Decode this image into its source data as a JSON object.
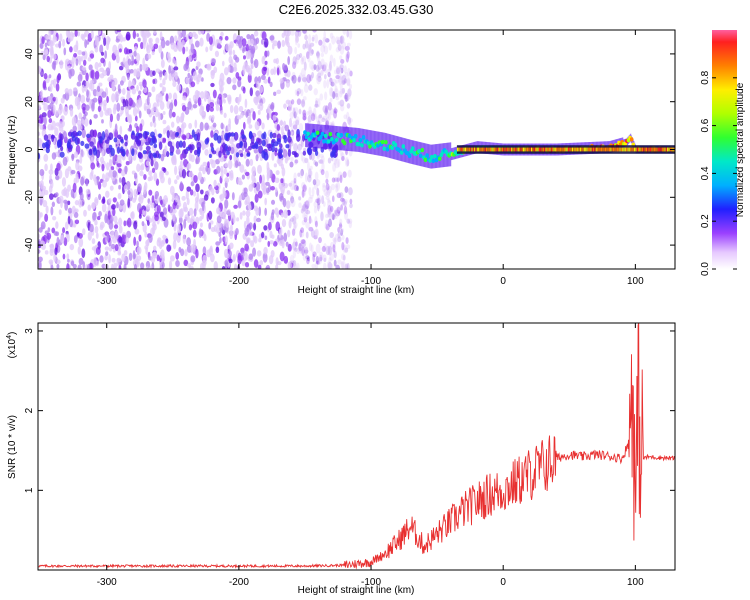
{
  "title": "C2E6.2025.332.03.45.G30",
  "chart_data": [
    {
      "type": "heatmap",
      "xlabel": "Height of straight line (km)",
      "ylabel": "Frequency (Hz)",
      "xlim": [
        -352,
        130
      ],
      "ylim": [
        -50,
        50
      ],
      "xticks": [
        -300,
        -200,
        -100,
        0,
        100
      ],
      "yticks": [
        -40,
        -20,
        0,
        20,
        40
      ],
      "xtick_labels": [
        "-300",
        "-200",
        "-100",
        "0",
        "100"
      ],
      "ytick_labels": [
        "-40",
        "-20",
        "0",
        "20",
        "40"
      ],
      "colorbar": {
        "label": "Normalized spectral amplitude",
        "range": [
          0,
          1
        ],
        "ticks": [
          0,
          0.2,
          0.4,
          0.6,
          0.8
        ],
        "tick_labels": [
          "0.0",
          "0.2",
          "0.4",
          "0.6",
          "0.8"
        ]
      },
      "ridge": {
        "x": [
          -150,
          -130,
          -110,
          -90,
          -70,
          -55,
          -40,
          -20,
          0,
          40,
          80,
          93,
          96,
          100,
          130
        ],
        "frequency": [
          6,
          5,
          4,
          2,
          -1,
          -3,
          -2,
          1,
          0,
          0,
          1,
          3,
          5,
          0,
          0
        ]
      },
      "noise_region_x": [
        -352,
        -125
      ]
    },
    {
      "type": "line",
      "xlabel": "Height of straight line (km)",
      "ylabel": "SNR (10 * v/v)",
      "y_multiplier_label": "(x10",
      "y_multiplier_exp": "4",
      "xlim": [
        -352,
        130
      ],
      "ylim": [
        0,
        3.1
      ],
      "xticks": [
        -300,
        -200,
        -100,
        0,
        100
      ],
      "yticks": [
        1,
        2,
        3
      ],
      "xtick_labels": [
        "-300",
        "-200",
        "-100",
        "0",
        "100"
      ],
      "ytick_labels": [
        "1",
        "2",
        "3"
      ],
      "series": [
        {
          "color": "#e83030",
          "x": [
            -352,
            -300,
            -250,
            -200,
            -150,
            -120,
            -100,
            -90,
            -80,
            -70,
            -60,
            -50,
            -40,
            -30,
            -20,
            -10,
            0,
            10,
            20,
            30,
            40,
            50,
            60,
            70,
            80,
            90,
            95,
            98,
            100,
            102,
            105,
            110,
            130
          ],
          "y": [
            0.05,
            0.05,
            0.05,
            0.05,
            0.05,
            0.06,
            0.1,
            0.2,
            0.35,
            0.55,
            0.3,
            0.45,
            0.6,
            0.75,
            0.85,
            0.95,
            1.0,
            1.1,
            1.2,
            1.3,
            1.4,
            1.45,
            1.42,
            1.45,
            1.43,
            1.4,
            1.6,
            2.6,
            0.5,
            2.2,
            1.4,
            1.42,
            1.4
          ]
        }
      ]
    }
  ]
}
